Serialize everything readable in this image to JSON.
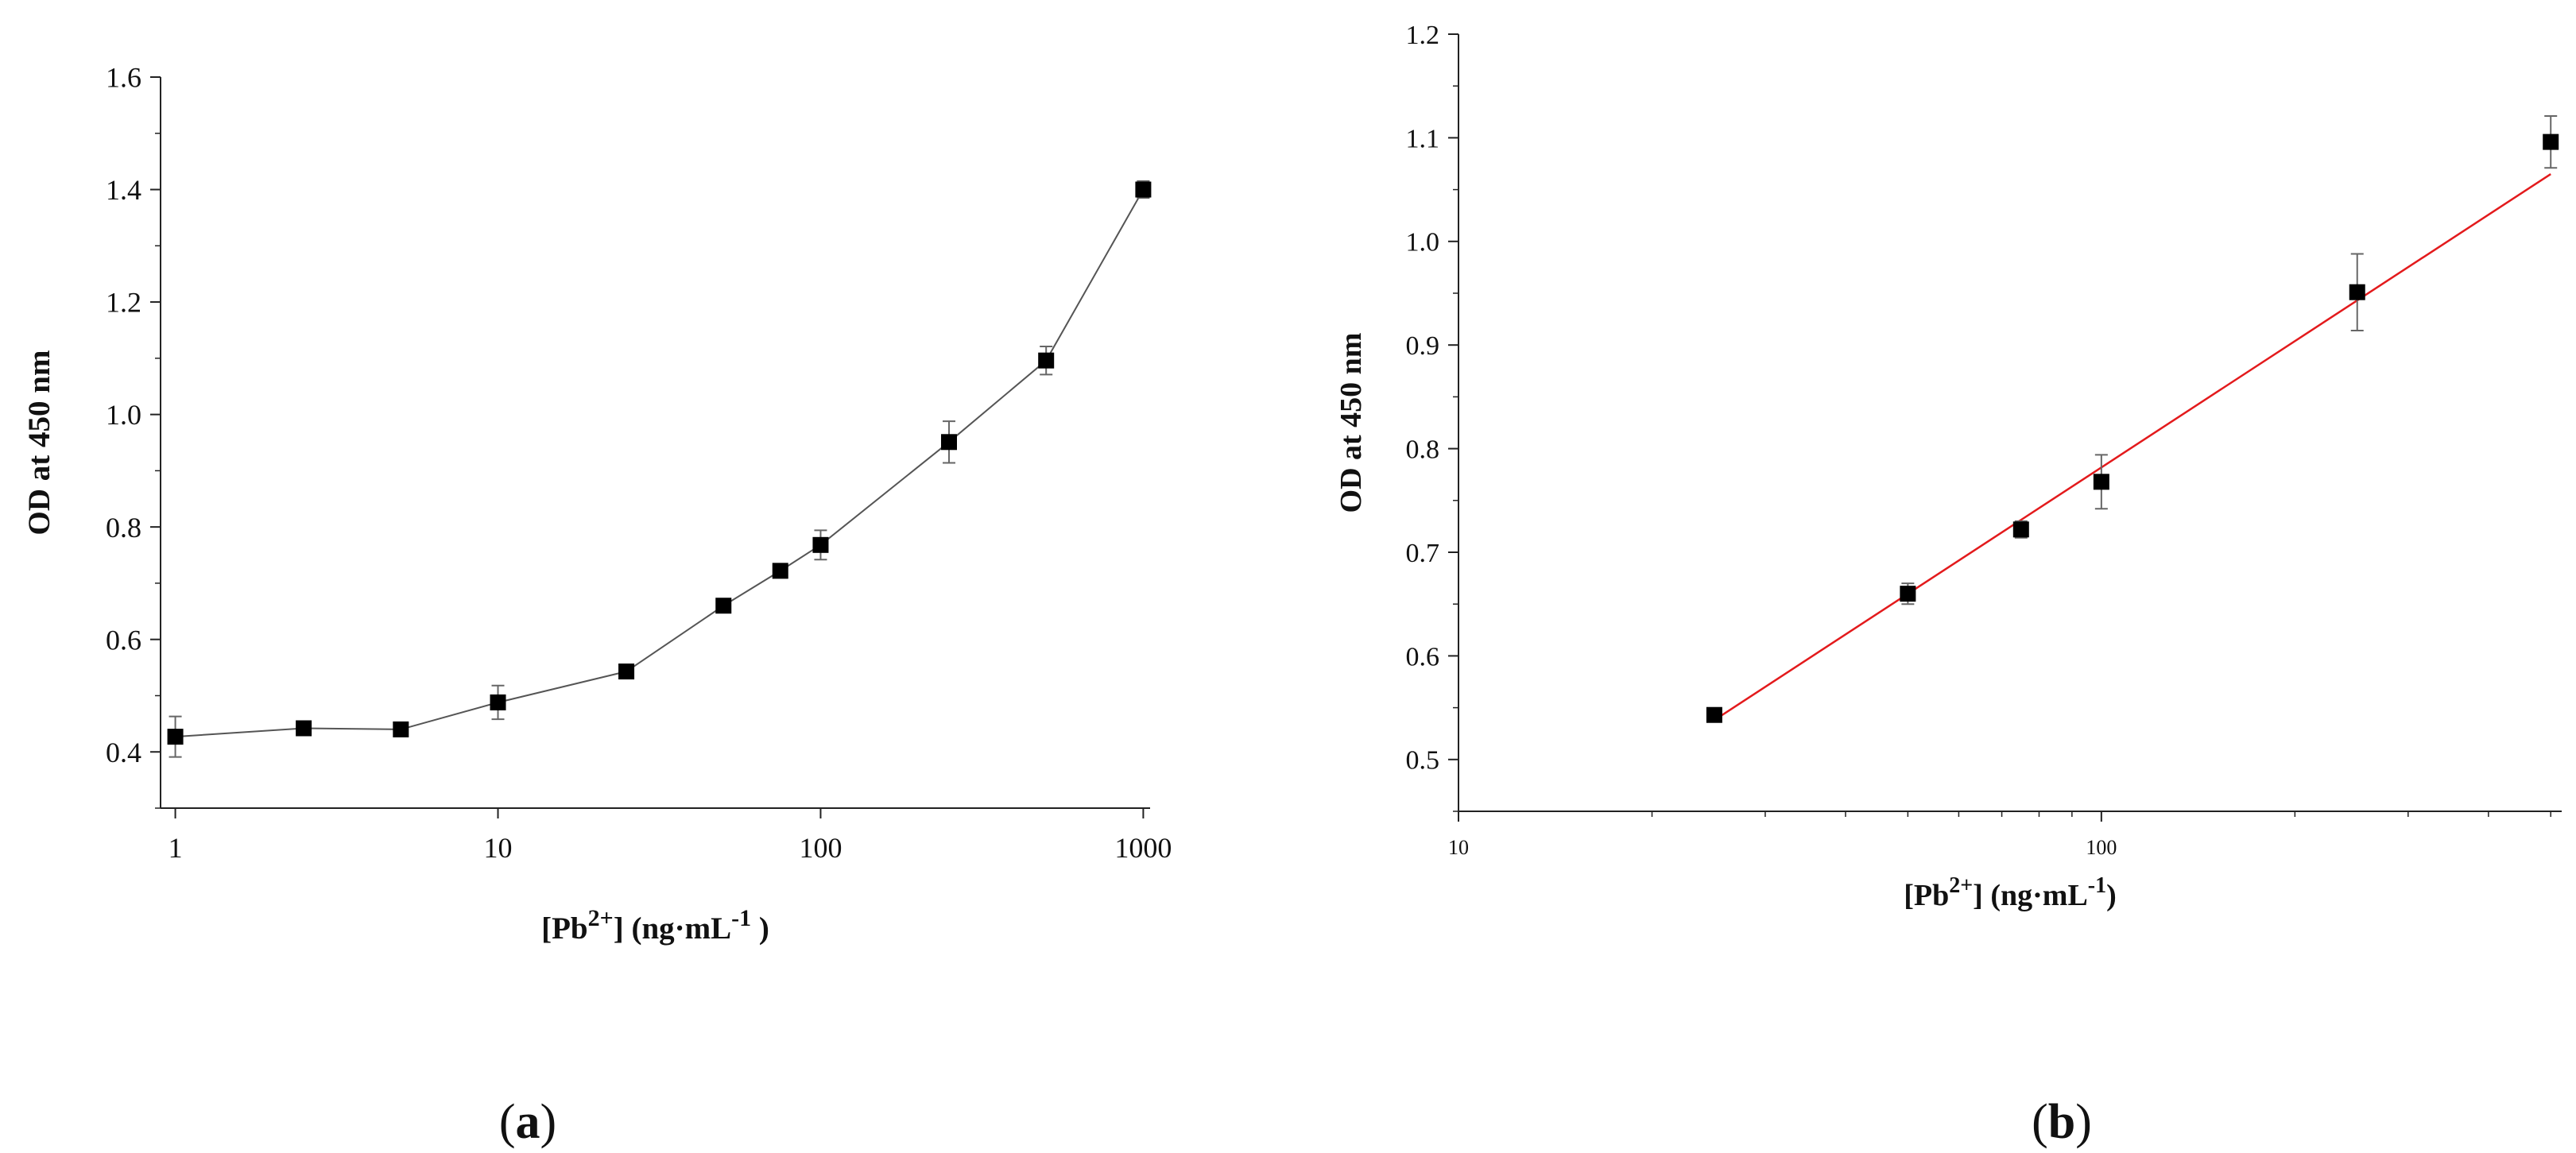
{
  "chart_data": [
    {
      "type": "line",
      "panel_label": {
        "open": "(",
        "letter": "a",
        "close": ")"
      },
      "xscale": "log",
      "xlabel": {
        "pre": "[Pb",
        "sup": "2+",
        "mid": "] (ng·mL",
        "sup2": "-1",
        "post": " )"
      },
      "ylabel": "OD at 450 nm",
      "xlim": [
        0.9,
        1050
      ],
      "ylim": [
        0.3,
        1.6
      ],
      "xticks": [
        1,
        10,
        100,
        1000
      ],
      "xtick_labels": [
        "1",
        "10",
        "100",
        "1000"
      ],
      "yticks": [
        0.4,
        0.6,
        0.8,
        1.0,
        1.2,
        1.4,
        1.6
      ],
      "ytick_labels": [
        "0.4",
        "0.6",
        "0.8",
        "1.0",
        "1.2",
        "1.4",
        "1.6"
      ],
      "series": [
        {
          "name": "OD",
          "x": [
            1,
            2.5,
            5,
            10,
            25,
            50,
            75,
            100,
            250,
            500,
            1000
          ],
          "y": [
            0.427,
            0.442,
            0.44,
            0.488,
            0.543,
            0.66,
            0.722,
            0.768,
            0.951,
            1.096,
            1.4
          ],
          "err": [
            0.036,
            0.006,
            0.006,
            0.03,
            0.007,
            0.01,
            0.01,
            0.026,
            0.037,
            0.025,
            0.015
          ]
        }
      ]
    },
    {
      "type": "scatter",
      "panel_label": {
        "open": "(",
        "letter": "b",
        "close": ")"
      },
      "xscale": "log",
      "xlabel": {
        "pre": "[Pb",
        "sup": "2+",
        "mid": "] (ng·mL",
        "sup2": "-1",
        "post": ")"
      },
      "ylabel": "OD at 450 nm",
      "xlim": [
        10,
        520
      ],
      "ylim": [
        0.45,
        1.2
      ],
      "xticks": [
        10,
        100
      ],
      "xtick_labels": [
        "10",
        "100"
      ],
      "yticks": [
        0.5,
        0.6,
        0.7,
        0.8,
        0.9,
        1.0,
        1.1,
        1.2
      ],
      "ytick_labels": [
        "0.5",
        "0.6",
        "0.7",
        "0.8",
        "0.9",
        "1.0",
        "1.1",
        "1.2"
      ],
      "series": [
        {
          "name": "OD",
          "x": [
            25,
            50,
            75,
            100,
            250,
            500
          ],
          "y": [
            0.543,
            0.66,
            0.722,
            0.768,
            0.951,
            1.096
          ],
          "err": [
            0.006,
            0.01,
            0.008,
            0.026,
            0.037,
            0.025
          ]
        }
      ],
      "fit_line": {
        "x": [
          25,
          500
        ],
        "y": [
          0.538,
          1.065
        ],
        "color": "#e31a1c"
      }
    }
  ]
}
